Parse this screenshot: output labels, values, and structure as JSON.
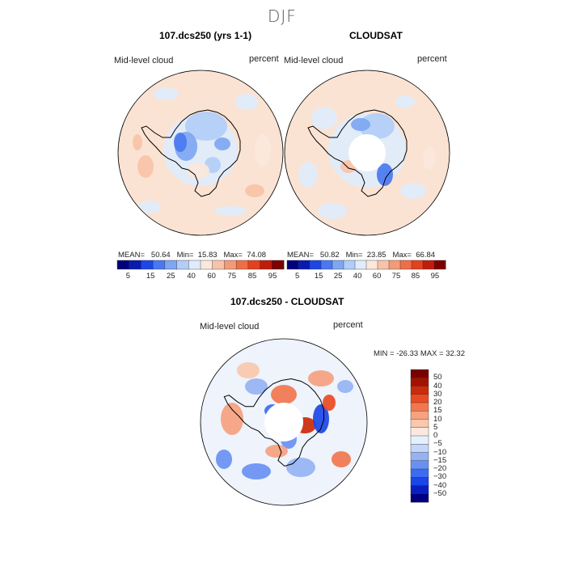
{
  "title": "DJF",
  "colors": {
    "seq": [
      "#00007d",
      "#0a1ab0",
      "#1e46e6",
      "#4a78f0",
      "#7ea6f2",
      "#b2cdf7",
      "#e0ecfb",
      "#fbe7db",
      "#f8c3a8",
      "#f49a76",
      "#ef6e48",
      "#e3411f",
      "#bf1d0c",
      "#7d0000"
    ],
    "diff": [
      "#000080",
      "#0a1fbe",
      "#1c46e6",
      "#3d6cf2",
      "#6891f3",
      "#95b3f4",
      "#c3d6f8",
      "#e6effc",
      "#fbe9df",
      "#f9c8ad",
      "#f6a17f",
      "#f1774f",
      "#ea4a23",
      "#cc2a09",
      "#a31200",
      "#7a0000"
    ],
    "ocean_seq": "#fbe3d3",
    "ocean_diff": "#eef3fc",
    "hole": "#ffffff"
  },
  "panels": [
    {
      "title": "107.dcs250 (yrs 1-1)",
      "left_label": "Mid-level cloud",
      "right_label": "percent",
      "stats": {
        "mean_label": "MEAN=",
        "mean": "50.64",
        "min_label": "Min=",
        "min": "15.83",
        "max_label": "Max=",
        "max": "74.08"
      }
    },
    {
      "title": "CLOUDSAT",
      "left_label": "Mid-level cloud",
      "right_label": "percent",
      "stats": {
        "mean_label": "MEAN=",
        "mean": "50.82",
        "min_label": "Min=",
        "min": "23.85",
        "max_label": "Max=",
        "max": "66.84"
      }
    }
  ],
  "seq_colorbar_labels": [
    "5",
    "15",
    "25",
    "40",
    "60",
    "75",
    "85",
    "95"
  ],
  "diff_panel": {
    "title": "107.dcs250 - CLOUDSAT",
    "left_label": "Mid-level cloud",
    "right_label": "percent",
    "minmax": "MIN = -26.33 MAX =  32.32"
  },
  "diff_colorbar_labels": [
    "50",
    "40",
    "30",
    "20",
    "15",
    "10",
    "5",
    "0",
    "−5",
    "−10",
    "−15",
    "−20",
    "−30",
    "−40",
    "−50"
  ]
}
